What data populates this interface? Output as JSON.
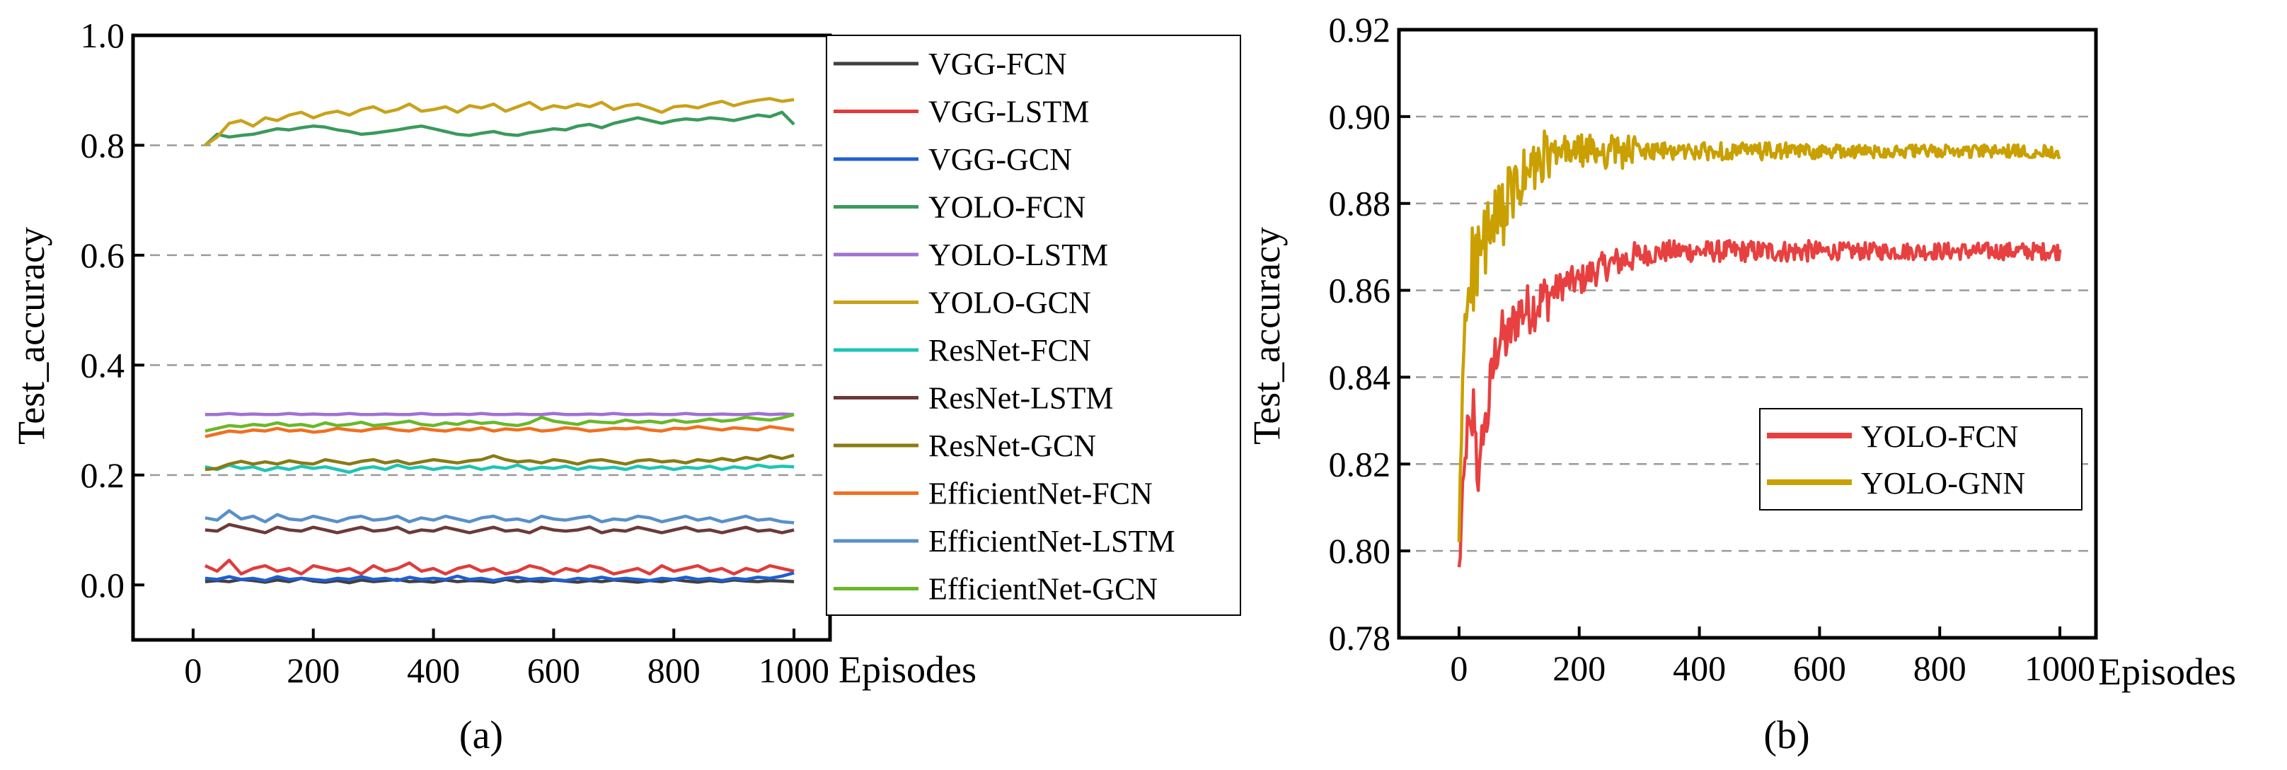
{
  "chart_data": [
    {
      "type": "line",
      "panel_label": "(a)",
      "title": "",
      "xlabel": "Episodes",
      "ylabel": "Test_accuracy",
      "xlim": [
        -100,
        1060
      ],
      "ylim": [
        -0.1,
        1.0
      ],
      "xticks": [
        0,
        200,
        400,
        600,
        800,
        1000
      ],
      "xtick_labels": [
        "0",
        "200",
        "400",
        "600",
        "800",
        "1000"
      ],
      "yticks": [
        0.0,
        0.2,
        0.4,
        0.6,
        0.8,
        1.0
      ],
      "ytick_labels": [
        "0.0",
        "0.2",
        "0.4",
        "0.6",
        "0.8",
        "1.0"
      ],
      "grid": "horizontal dashed",
      "legend_position": "outside-right",
      "x_start": 20,
      "x_step": 20,
      "series": [
        {
          "name": "VGG-FCN",
          "color": "#404040",
          "values": [
            0.006,
            0.008,
            0.006,
            0.01,
            0.008,
            0.005,
            0.009,
            0.006,
            0.012,
            0.007,
            0.005,
            0.008,
            0.004,
            0.009,
            0.006,
            0.008,
            0.01,
            0.006,
            0.007,
            0.005,
            0.009,
            0.006,
            0.008,
            0.007,
            0.005,
            0.01,
            0.006,
            0.008,
            0.006,
            0.009,
            0.007,
            0.005,
            0.008,
            0.006,
            0.009,
            0.007,
            0.005,
            0.008,
            0.006,
            0.01,
            0.007,
            0.005,
            0.008,
            0.006,
            0.009,
            0.007,
            0.006,
            0.008,
            0.007,
            0.006
          ]
        },
        {
          "name": "VGG-LSTM",
          "color": "#e03c3c",
          "values": [
            0.035,
            0.025,
            0.045,
            0.02,
            0.03,
            0.035,
            0.025,
            0.03,
            0.02,
            0.035,
            0.03,
            0.025,
            0.03,
            0.02,
            0.035,
            0.025,
            0.03,
            0.04,
            0.025,
            0.03,
            0.02,
            0.03,
            0.035,
            0.025,
            0.03,
            0.02,
            0.025,
            0.035,
            0.03,
            0.02,
            0.03,
            0.025,
            0.035,
            0.03,
            0.02,
            0.025,
            0.03,
            0.02,
            0.035,
            0.025,
            0.03,
            0.035,
            0.025,
            0.03,
            0.02,
            0.03,
            0.025,
            0.035,
            0.03,
            0.025
          ]
        },
        {
          "name": "VGG-GCN",
          "color": "#1f5fd1",
          "values": [
            0.012,
            0.01,
            0.015,
            0.01,
            0.012,
            0.008,
            0.015,
            0.01,
            0.012,
            0.01,
            0.008,
            0.012,
            0.01,
            0.015,
            0.01,
            0.012,
            0.008,
            0.014,
            0.01,
            0.012,
            0.01,
            0.016,
            0.01,
            0.012,
            0.008,
            0.012,
            0.014,
            0.01,
            0.012,
            0.01,
            0.008,
            0.012,
            0.01,
            0.014,
            0.01,
            0.012,
            0.01,
            0.008,
            0.012,
            0.01,
            0.014,
            0.01,
            0.012,
            0.008,
            0.012,
            0.01,
            0.014,
            0.012,
            0.016,
            0.022
          ]
        },
        {
          "name": "YOLO-FCN",
          "color": "#3a9a5c",
          "values": [
            0.8,
            0.82,
            0.815,
            0.818,
            0.82,
            0.825,
            0.83,
            0.828,
            0.832,
            0.835,
            0.833,
            0.828,
            0.825,
            0.82,
            0.822,
            0.825,
            0.828,
            0.832,
            0.835,
            0.83,
            0.825,
            0.82,
            0.818,
            0.822,
            0.825,
            0.82,
            0.818,
            0.823,
            0.826,
            0.83,
            0.828,
            0.835,
            0.838,
            0.832,
            0.84,
            0.845,
            0.85,
            0.845,
            0.84,
            0.845,
            0.848,
            0.846,
            0.85,
            0.848,
            0.845,
            0.85,
            0.855,
            0.852,
            0.86,
            0.838
          ]
        },
        {
          "name": "YOLO-LSTM",
          "color": "#a070d6",
          "values": [
            0.31,
            0.31,
            0.312,
            0.31,
            0.311,
            0.31,
            0.31,
            0.312,
            0.31,
            0.311,
            0.31,
            0.31,
            0.312,
            0.31,
            0.31,
            0.311,
            0.31,
            0.31,
            0.312,
            0.31,
            0.31,
            0.311,
            0.31,
            0.312,
            0.31,
            0.31,
            0.311,
            0.31,
            0.31,
            0.312,
            0.31,
            0.31,
            0.311,
            0.31,
            0.312,
            0.31,
            0.31,
            0.311,
            0.31,
            0.31,
            0.312,
            0.31,
            0.31,
            0.311,
            0.31,
            0.31,
            0.312,
            0.31,
            0.311,
            0.31
          ]
        },
        {
          "name": "YOLO-GCN",
          "color": "#c9a21a",
          "values": [
            0.8,
            0.815,
            0.84,
            0.845,
            0.835,
            0.85,
            0.845,
            0.855,
            0.86,
            0.85,
            0.858,
            0.862,
            0.855,
            0.865,
            0.87,
            0.86,
            0.865,
            0.875,
            0.862,
            0.865,
            0.87,
            0.86,
            0.872,
            0.868,
            0.875,
            0.862,
            0.87,
            0.878,
            0.865,
            0.872,
            0.868,
            0.875,
            0.87,
            0.878,
            0.865,
            0.872,
            0.875,
            0.868,
            0.86,
            0.87,
            0.872,
            0.868,
            0.875,
            0.88,
            0.872,
            0.878,
            0.882,
            0.885,
            0.88,
            0.883
          ]
        },
        {
          "name": "ResNet-FCN",
          "color": "#1fc4b4",
          "values": [
            0.215,
            0.21,
            0.218,
            0.212,
            0.215,
            0.208,
            0.214,
            0.21,
            0.216,
            0.212,
            0.215,
            0.21,
            0.205,
            0.212,
            0.215,
            0.21,
            0.218,
            0.212,
            0.215,
            0.21,
            0.214,
            0.212,
            0.216,
            0.21,
            0.215,
            0.212,
            0.218,
            0.21,
            0.214,
            0.212,
            0.216,
            0.21,
            0.215,
            0.212,
            0.214,
            0.21,
            0.216,
            0.212,
            0.215,
            0.21,
            0.214,
            0.212,
            0.216,
            0.21,
            0.215,
            0.212,
            0.218,
            0.214,
            0.216,
            0.215
          ]
        },
        {
          "name": "ResNet-LSTM",
          "color": "#6b3a3a",
          "values": [
            0.1,
            0.098,
            0.11,
            0.105,
            0.1,
            0.095,
            0.105,
            0.1,
            0.098,
            0.105,
            0.1,
            0.095,
            0.1,
            0.105,
            0.098,
            0.1,
            0.105,
            0.095,
            0.1,
            0.098,
            0.105,
            0.1,
            0.095,
            0.1,
            0.105,
            0.098,
            0.1,
            0.095,
            0.105,
            0.1,
            0.098,
            0.1,
            0.105,
            0.095,
            0.1,
            0.098,
            0.105,
            0.1,
            0.095,
            0.1,
            0.105,
            0.098,
            0.1,
            0.095,
            0.1,
            0.105,
            0.098,
            0.1,
            0.095,
            0.1
          ]
        },
        {
          "name": "ResNet-GCN",
          "color": "#8a7a14",
          "values": [
            0.21,
            0.212,
            0.22,
            0.225,
            0.22,
            0.224,
            0.22,
            0.226,
            0.222,
            0.22,
            0.228,
            0.224,
            0.22,
            0.225,
            0.228,
            0.222,
            0.226,
            0.22,
            0.224,
            0.228,
            0.225,
            0.222,
            0.226,
            0.228,
            0.235,
            0.228,
            0.224,
            0.226,
            0.222,
            0.228,
            0.225,
            0.22,
            0.226,
            0.228,
            0.224,
            0.22,
            0.226,
            0.228,
            0.224,
            0.226,
            0.222,
            0.228,
            0.225,
            0.23,
            0.226,
            0.232,
            0.228,
            0.235,
            0.23,
            0.236
          ]
        },
        {
          "name": "EfficientNet-FCN",
          "color": "#f07020",
          "values": [
            0.27,
            0.275,
            0.28,
            0.278,
            0.282,
            0.28,
            0.285,
            0.28,
            0.282,
            0.278,
            0.28,
            0.285,
            0.282,
            0.28,
            0.284,
            0.286,
            0.282,
            0.28,
            0.285,
            0.282,
            0.28,
            0.284,
            0.282,
            0.286,
            0.28,
            0.284,
            0.282,
            0.285,
            0.28,
            0.282,
            0.286,
            0.284,
            0.28,
            0.282,
            0.285,
            0.284,
            0.286,
            0.282,
            0.28,
            0.285,
            0.284,
            0.288,
            0.285,
            0.282,
            0.286,
            0.284,
            0.282,
            0.288,
            0.285,
            0.282
          ]
        },
        {
          "name": "EfficientNet-LSTM",
          "color": "#5a90c8",
          "values": [
            0.122,
            0.118,
            0.135,
            0.12,
            0.125,
            0.115,
            0.128,
            0.12,
            0.118,
            0.125,
            0.12,
            0.115,
            0.122,
            0.125,
            0.118,
            0.12,
            0.125,
            0.115,
            0.122,
            0.118,
            0.125,
            0.12,
            0.115,
            0.122,
            0.125,
            0.118,
            0.12,
            0.115,
            0.125,
            0.12,
            0.118,
            0.122,
            0.125,
            0.115,
            0.12,
            0.118,
            0.125,
            0.122,
            0.115,
            0.12,
            0.125,
            0.118,
            0.122,
            0.115,
            0.12,
            0.125,
            0.118,
            0.12,
            0.115,
            0.113
          ]
        },
        {
          "name": "EfficientNet-GCN",
          "color": "#6ab82a",
          "values": [
            0.28,
            0.285,
            0.29,
            0.288,
            0.292,
            0.29,
            0.295,
            0.29,
            0.292,
            0.288,
            0.295,
            0.29,
            0.292,
            0.296,
            0.29,
            0.292,
            0.295,
            0.298,
            0.292,
            0.29,
            0.295,
            0.292,
            0.298,
            0.294,
            0.296,
            0.292,
            0.29,
            0.295,
            0.305,
            0.298,
            0.295,
            0.292,
            0.298,
            0.296,
            0.295,
            0.3,
            0.296,
            0.298,
            0.295,
            0.3,
            0.296,
            0.298,
            0.302,
            0.298,
            0.3,
            0.305,
            0.302,
            0.3,
            0.304,
            0.31
          ]
        }
      ]
    },
    {
      "type": "line",
      "panel_label": "(b)",
      "title": "",
      "xlabel": "Episodes",
      "ylabel": "Test_accuracy",
      "xlim": [
        -100,
        1060
      ],
      "ylim": [
        0.78,
        0.92
      ],
      "xticks": [
        0,
        200,
        400,
        600,
        800,
        1000
      ],
      "xtick_labels": [
        "0",
        "200",
        "400",
        "600",
        "800",
        "1000"
      ],
      "yticks": [
        0.78,
        0.8,
        0.82,
        0.84,
        0.86,
        0.88,
        0.9,
        0.92
      ],
      "ytick_labels": [
        "0.78",
        "0.80",
        "0.82",
        "0.84",
        "0.86",
        "0.88",
        "0.90",
        "0.92"
      ],
      "grid": "horizontal dashed",
      "legend_position": "lower-right",
      "series": [
        {
          "name": "YOLO-FCN",
          "color": "#e84040",
          "anchors": [
            [
              0,
              0.795
            ],
            [
              2,
              0.8
            ],
            [
              5,
              0.81
            ],
            [
              10,
              0.82
            ],
            [
              15,
              0.83
            ],
            [
              20,
              0.825
            ],
            [
              25,
              0.835
            ],
            [
              30,
              0.82
            ],
            [
              35,
              0.815
            ],
            [
              40,
              0.83
            ],
            [
              45,
              0.828
            ],
            [
              50,
              0.835
            ],
            [
              55,
              0.84
            ],
            [
              60,
              0.845
            ],
            [
              70,
              0.85
            ],
            [
              80,
              0.848
            ],
            [
              90,
              0.852
            ],
            [
              100,
              0.855
            ],
            [
              120,
              0.856
            ],
            [
              140,
              0.858
            ],
            [
              160,
              0.86
            ],
            [
              180,
              0.862
            ],
            [
              200,
              0.862
            ],
            [
              220,
              0.864
            ],
            [
              250,
              0.866
            ],
            [
              300,
              0.868
            ],
            [
              350,
              0.869
            ],
            [
              400,
              0.869
            ],
            [
              500,
              0.869
            ],
            [
              600,
              0.869
            ],
            [
              700,
              0.869
            ],
            [
              800,
              0.869
            ],
            [
              900,
              0.869
            ],
            [
              1000,
              0.869
            ]
          ],
          "noise": [
            0.004,
            0.007,
            0.006,
            0.0035,
            0.0025,
            0.002
          ]
        },
        {
          "name": "YOLO-GNN",
          "color": "#c9a000",
          "anchors": [
            [
              0,
              0.8
            ],
            [
              3,
              0.82
            ],
            [
              6,
              0.84
            ],
            [
              10,
              0.852
            ],
            [
              15,
              0.86
            ],
            [
              20,
              0.865
            ],
            [
              30,
              0.866
            ],
            [
              40,
              0.87
            ],
            [
              50,
              0.872
            ],
            [
              60,
              0.875
            ],
            [
              80,
              0.88
            ],
            [
              100,
              0.884
            ],
            [
              120,
              0.887
            ],
            [
              140,
              0.889
            ],
            [
              160,
              0.891
            ],
            [
              180,
              0.892
            ],
            [
              200,
              0.892
            ],
            [
              250,
              0.892
            ],
            [
              300,
              0.892
            ],
            [
              400,
              0.892
            ],
            [
              500,
              0.892
            ],
            [
              600,
              0.892
            ],
            [
              700,
              0.892
            ],
            [
              800,
              0.892
            ],
            [
              900,
              0.892
            ],
            [
              1000,
              0.892
            ]
          ],
          "noise": [
            0.005,
            0.01,
            0.008,
            0.004,
            0.002,
            0.0015
          ]
        }
      ]
    }
  ]
}
